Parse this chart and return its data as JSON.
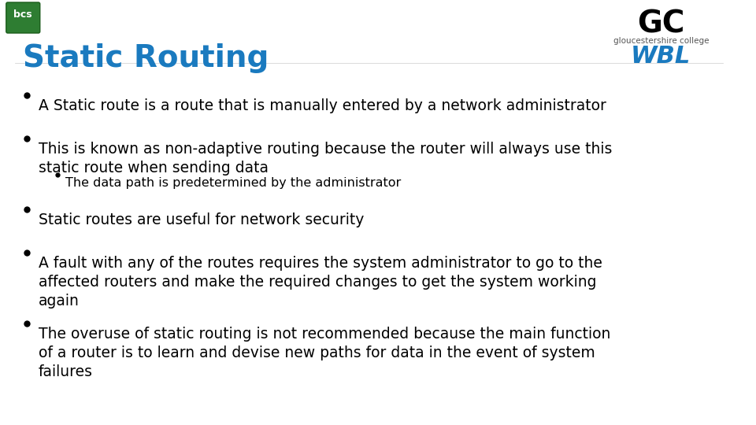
{
  "title": "Static Routing",
  "title_color": "#1a7abf",
  "title_fontsize": 28,
  "title_bold": true,
  "background_color": "#ffffff",
  "bullet_color": "#000000",
  "bullet_fontsize": 13.5,
  "sub_bullet_fontsize": 11.5,
  "bullets": [
    {
      "level": 1,
      "text": "A Static route is a route that is manually entered by a network administrator"
    },
    {
      "level": 1,
      "text": "This is known as non-adaptive routing because the router will always use this\nstatic route when sending data"
    },
    {
      "level": 2,
      "text": "The data path is predetermined by the administrator"
    },
    {
      "level": 1,
      "text": "Static routes are useful for network security"
    },
    {
      "level": 1,
      "text": "A fault with any of the routes requires the system administrator to go to the\naffected routers and make the required changes to get the system working\nagain"
    },
    {
      "level": 1,
      "text": "The overuse of static routing is not recommended because the main function\nof a router is to learn and devise new paths for data in the event of system\nfailures"
    }
  ]
}
